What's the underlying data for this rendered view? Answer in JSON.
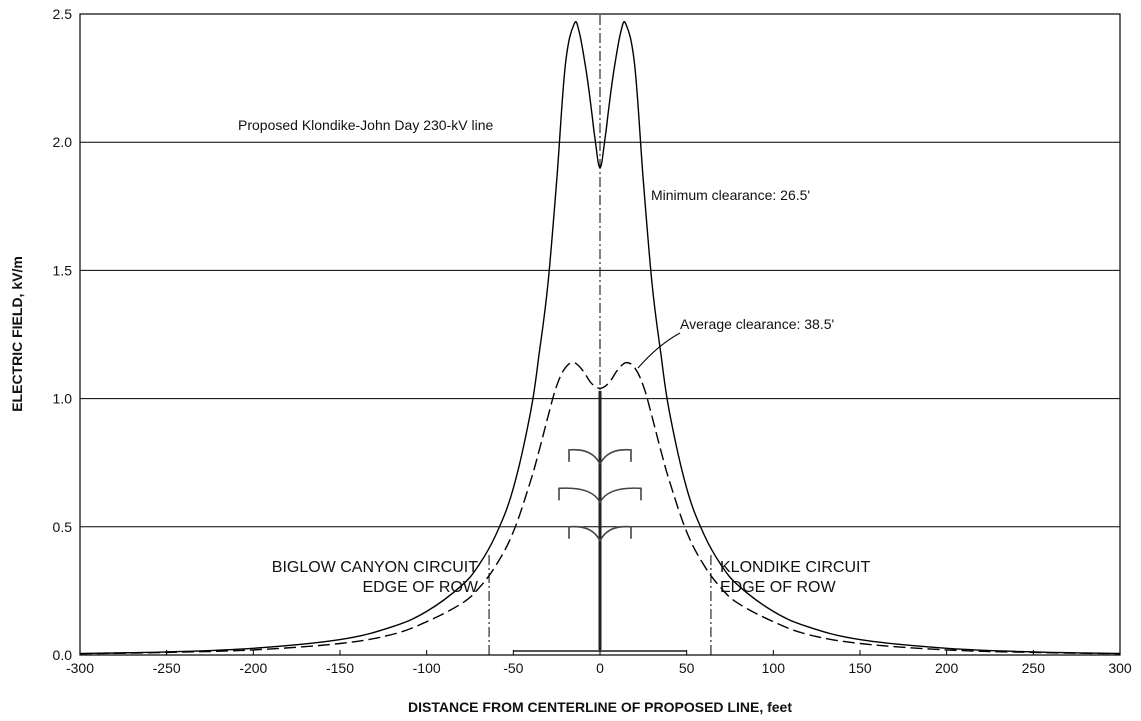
{
  "chart_data": {
    "type": "line",
    "xlabel": "DISTANCE FROM CENTERLINE OF PROPOSED LINE, feet",
    "ylabel": "ELECTRIC FIELD, kV/m",
    "xlim": [
      -300,
      300
    ],
    "ylim": [
      0,
      2.5
    ],
    "x_ticks": [
      "-300",
      "-250",
      "-200",
      "-150",
      "-100",
      "-50",
      "0",
      "50",
      "100",
      "150",
      "200",
      "250",
      "300"
    ],
    "y_ticks": [
      "0.0",
      "0.5",
      "1.0",
      "1.5",
      "2.0",
      "2.5"
    ],
    "grid": "horizontal",
    "series": [
      {
        "name": "Minimum clearance: 26.5'",
        "style": "solid",
        "x": [
          -300,
          -250,
          -200,
          -150,
          -120,
          -100,
          -80,
          -70,
          -60,
          -50,
          -40,
          -35,
          -30,
          -25,
          -20,
          -15,
          -12,
          -8,
          -5,
          -3,
          0,
          3,
          5,
          8,
          12,
          15,
          20,
          25,
          30,
          35,
          40,
          50,
          60,
          70,
          80,
          100,
          120,
          150,
          200,
          250,
          300
        ],
        "y": [
          0.006,
          0.012,
          0.026,
          0.06,
          0.11,
          0.17,
          0.27,
          0.35,
          0.47,
          0.65,
          0.95,
          1.18,
          1.45,
          1.85,
          2.3,
          2.46,
          2.43,
          2.28,
          2.13,
          2.02,
          1.9,
          2.02,
          2.13,
          2.28,
          2.43,
          2.46,
          2.3,
          1.85,
          1.45,
          1.18,
          0.95,
          0.65,
          0.47,
          0.35,
          0.27,
          0.17,
          0.11,
          0.06,
          0.026,
          0.012,
          0.006
        ]
      },
      {
        "name": "Average clearance: 38.5'",
        "style": "dashed",
        "x": [
          -300,
          -250,
          -200,
          -150,
          -120,
          -100,
          -80,
          -70,
          -60,
          -50,
          -40,
          -35,
          -30,
          -25,
          -20,
          -15,
          -10,
          -5,
          0,
          5,
          10,
          15,
          20,
          25,
          30,
          35,
          40,
          50,
          60,
          70,
          80,
          100,
          120,
          150,
          200,
          250,
          300
        ],
        "y": [
          0.005,
          0.01,
          0.02,
          0.045,
          0.08,
          0.13,
          0.2,
          0.26,
          0.35,
          0.48,
          0.68,
          0.8,
          0.93,
          1.05,
          1.12,
          1.14,
          1.11,
          1.06,
          1.04,
          1.06,
          1.11,
          1.14,
          1.12,
          1.05,
          0.93,
          0.8,
          0.68,
          0.48,
          0.35,
          0.26,
          0.2,
          0.13,
          0.08,
          0.045,
          0.02,
          0.01,
          0.005
        ]
      }
    ],
    "reference_lines": [
      {
        "x": -64,
        "ymax": 0.4
      },
      {
        "x": 0,
        "ymax": 2.5
      },
      {
        "x": 64,
        "ymax": 0.4
      }
    ],
    "annotations": [
      {
        "text": "Proposed Klondike-John Day 230-kV line",
        "x": -212,
        "y": 2.19
      },
      {
        "text": "Minimum clearance: 26.5'",
        "x": 30,
        "y": 1.78
      },
      {
        "text": "Average clearance: 38.5'",
        "x": 50,
        "y": 1.42
      }
    ],
    "row_labels": {
      "left": [
        "BIGLOW CANYON CIRCUIT",
        "EDGE OF ROW"
      ],
      "right": [
        "KLONDIKE CIRCUIT",
        "EDGE OF ROW"
      ]
    }
  }
}
